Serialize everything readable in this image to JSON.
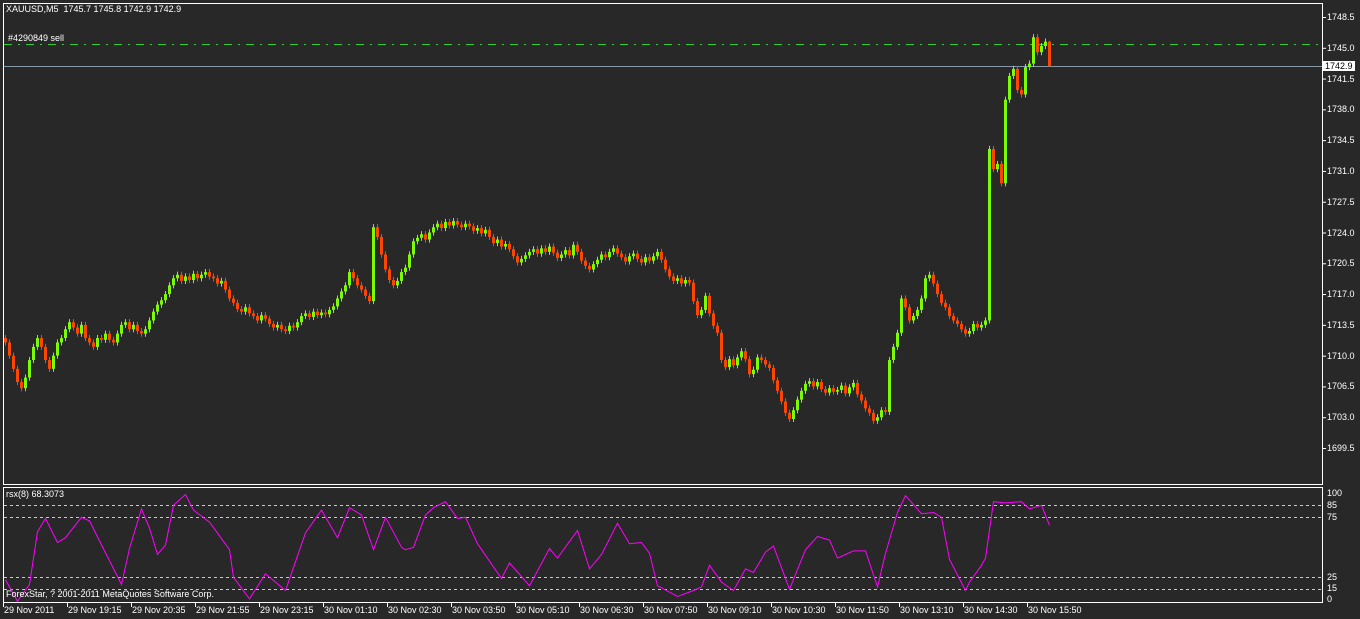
{
  "header": {
    "symbol_label": "XAUUSD,M5",
    "ohlc_label": "1745.7 1745.8 1742.9 1742.9"
  },
  "footer": {
    "copyright": "ForexStar, ? 2001-2011 MetaQuotes Software Corp."
  },
  "colors": {
    "background": "#282828",
    "bull": "#7CFC00",
    "bear": "#FF4500",
    "order_line": "#32CD32",
    "bid_line": "#8899A6",
    "indicator": "#FF00FF",
    "grid_levels": "#C8C8C8",
    "frame": "#FFFFFF"
  },
  "chart_data": {
    "type": "candlestick",
    "symbol": "XAUUSD",
    "timeframe": "M5",
    "last_bar": {
      "open": 1745.7,
      "high": 1745.8,
      "low": 1742.9,
      "close": 1742.9
    },
    "price_axis": {
      "range": [
        1699.5,
        1748.5
      ],
      "ticks": [
        "1748.5",
        "1745.0",
        "1741.5",
        "1738.0",
        "1734.5",
        "1731.0",
        "1727.5",
        "1724.0",
        "1720.5",
        "1717.0",
        "1713.5",
        "1710.0",
        "1706.5",
        "1703.0",
        "1699.5"
      ]
    },
    "current_price": {
      "value": 1742.9,
      "label": "1742.9"
    },
    "order_line": {
      "label": "#4290849 sell",
      "price": 1745.4
    },
    "time_labels": [
      "29 Nov 2011",
      "29 Nov 19:15",
      "29 Nov 20:35",
      "29 Nov 21:55",
      "29 Nov 23:15",
      "30 Nov 01:10",
      "30 Nov 02:30",
      "30 Nov 03:50",
      "30 Nov 05:10",
      "30 Nov 06:30",
      "30 Nov 07:50",
      "30 Nov 09:10",
      "30 Nov 10:30",
      "30 Nov 11:50",
      "30 Nov 13:10",
      "30 Nov 14:30",
      "30 Nov 15:50"
    ],
    "bars_per_time_label": 16,
    "close": [
      1711.5,
      1710,
      1708.5,
      1707,
      1706.3,
      1707.5,
      1709.5,
      1711,
      1712,
      1711,
      1709.5,
      1708.5,
      1710,
      1711.5,
      1712,
      1713,
      1713.8,
      1713.2,
      1712.5,
      1713.5,
      1712,
      1711.5,
      1711,
      1712,
      1711.8,
      1712.5,
      1711.8,
      1711.5,
      1712.5,
      1713.5,
      1713.8,
      1713,
      1713.5,
      1712.8,
      1712.5,
      1713,
      1714,
      1715,
      1715.8,
      1716.3,
      1717,
      1718,
      1718.8,
      1719.2,
      1718.5,
      1719,
      1718.6,
      1719.3,
      1718.8,
      1719.2,
      1719.5,
      1719,
      1718.8,
      1718.2,
      1718.5,
      1717.5,
      1716.5,
      1716,
      1715.3,
      1715,
      1715.5,
      1714.8,
      1714.5,
      1714,
      1714.6,
      1714.2,
      1713.6,
      1713.2,
      1713.5,
      1713,
      1712.8,
      1713.4,
      1713.2,
      1713.8,
      1714.5,
      1714.8,
      1714.4,
      1715,
      1714.6,
      1714.9,
      1714.7,
      1715.2,
      1715.6,
      1716.5,
      1717.3,
      1718,
      1719.5,
      1718.8,
      1718,
      1717.5,
      1716.8,
      1716.2,
      1724.6,
      1723.5,
      1721.5,
      1719.8,
      1718.6,
      1718,
      1718.5,
      1719.5,
      1720,
      1721.5,
      1723,
      1723.4,
      1723.8,
      1723.2,
      1724,
      1724.6,
      1725,
      1724.5,
      1725.2,
      1724.8,
      1725.3,
      1724.9,
      1724.6,
      1725,
      1724.7,
      1724.2,
      1724.5,
      1723.9,
      1724.3,
      1723.5,
      1722.8,
      1723.2,
      1722.4,
      1722.7,
      1722.1,
      1721.3,
      1720.6,
      1721,
      1721.4,
      1721.8,
      1722.1,
      1721.6,
      1722.2,
      1721.8,
      1722.4,
      1721.7,
      1721.1,
      1721.5,
      1722,
      1721.4,
      1722.6,
      1721.8,
      1720.8,
      1720.2,
      1719.8,
      1720.4,
      1720.9,
      1721.5,
      1721.2,
      1721.8,
      1722.2,
      1721.6,
      1721.2,
      1720.7,
      1721.3,
      1721.6,
      1721,
      1720.6,
      1721.2,
      1720.8,
      1721.3,
      1721.8,
      1720.9,
      1719.8,
      1719,
      1718.5,
      1718.8,
      1718.2,
      1718.6,
      1718.3,
      1716.2,
      1714.6,
      1715.2,
      1716.8,
      1714.8,
      1713.4,
      1712.6,
      1709.5,
      1708.7,
      1709.6,
      1708.9,
      1709.8,
      1710.5,
      1709.6,
      1707.9,
      1708.4,
      1709.8,
      1709.5,
      1709,
      1708.6,
      1707.2,
      1706,
      1704.8,
      1703.5,
      1702.8,
      1703.8,
      1705,
      1706,
      1706.8,
      1707.1,
      1706.5,
      1707,
      1706.2,
      1705.8,
      1706.3,
      1705.9,
      1706.1,
      1706.6,
      1705.7,
      1706.4,
      1706.9,
      1705.6,
      1704.9,
      1704,
      1703.5,
      1702.6,
      1703,
      1703.8,
      1703.6,
      1709.5,
      1711,
      1712.6,
      1716.5,
      1715.5,
      1714,
      1714.5,
      1715.2,
      1716.5,
      1718.8,
      1719.2,
      1718.2,
      1717,
      1716,
      1715.5,
      1714.5,
      1714,
      1713.6,
      1713,
      1712.5,
      1712.8,
      1713.6,
      1713.2,
      1713.5,
      1714,
      1733.5,
      1731.2,
      1731.8,
      1729.6,
      1739.1,
      1741.8,
      1742.6,
      1740.2,
      1739.7,
      1742.8,
      1743.2,
      1746.2,
      1744.5,
      1745.2,
      1745.7,
      1742.9
    ],
    "indicator": {
      "label": "rsx(8) 68.3073",
      "name": "rsx(8)",
      "value": 68.3073,
      "range": [
        0,
        100
      ],
      "levels": [
        85,
        75,
        25,
        15
      ],
      "axis_ticks": [
        "100",
        "85",
        "75",
        "25",
        "15",
        "0"
      ],
      "points_bar_value": [
        [
          0,
          23
        ],
        [
          3,
          5
        ],
        [
          6,
          19
        ],
        [
          8,
          63
        ],
        [
          10,
          74
        ],
        [
          13,
          54
        ],
        [
          15,
          58
        ],
        [
          19,
          75
        ],
        [
          21,
          72
        ],
        [
          24,
          52
        ],
        [
          29,
          19
        ],
        [
          31,
          49
        ],
        [
          34,
          82
        ],
        [
          36,
          66
        ],
        [
          38,
          44
        ],
        [
          40,
          52
        ],
        [
          42,
          85
        ],
        [
          45,
          94
        ],
        [
          47,
          81
        ],
        [
          51,
          71
        ],
        [
          56,
          48
        ],
        [
          57,
          25
        ],
        [
          61,
          7
        ],
        [
          65,
          28
        ],
        [
          70,
          14
        ],
        [
          75,
          62
        ],
        [
          79,
          81
        ],
        [
          83,
          58
        ],
        [
          86,
          83
        ],
        [
          89,
          77
        ],
        [
          92,
          48
        ],
        [
          95,
          75
        ],
        [
          99,
          50
        ],
        [
          100,
          48
        ],
        [
          102,
          50
        ],
        [
          105,
          77
        ],
        [
          107,
          83
        ],
        [
          110,
          88
        ],
        [
          113,
          74
        ],
        [
          115,
          75
        ],
        [
          118,
          53
        ],
        [
          124,
          24
        ],
        [
          126,
          37
        ],
        [
          131,
          18
        ],
        [
          136,
          49
        ],
        [
          138,
          41
        ],
        [
          143,
          64
        ],
        [
          146,
          32
        ],
        [
          149,
          44
        ],
        [
          153,
          70
        ],
        [
          156,
          53
        ],
        [
          159,
          54
        ],
        [
          161,
          45
        ],
        [
          163,
          18
        ],
        [
          168,
          9
        ],
        [
          172,
          14
        ],
        [
          174,
          17
        ],
        [
          176,
          35
        ],
        [
          179,
          21
        ],
        [
          182,
          14
        ],
        [
          185,
          32
        ],
        [
          187,
          29
        ],
        [
          190,
          46
        ],
        [
          192,
          51
        ],
        [
          196,
          15
        ],
        [
          200,
          48
        ],
        [
          203,
          59
        ],
        [
          206,
          56
        ],
        [
          208,
          41
        ],
        [
          210,
          44
        ],
        [
          212,
          47
        ],
        [
          215,
          47
        ],
        [
          218,
          17
        ],
        [
          220,
          45
        ],
        [
          223,
          79
        ],
        [
          225,
          93
        ],
        [
          229,
          78
        ],
        [
          232,
          79
        ],
        [
          234,
          75
        ],
        [
          236,
          40
        ],
        [
          240,
          14
        ],
        [
          241,
          21
        ],
        [
          244,
          35
        ],
        [
          245,
          41
        ],
        [
          247,
          88
        ],
        [
          250,
          87
        ],
        [
          254,
          88
        ],
        [
          256,
          82
        ],
        [
          259,
          85
        ],
        [
          261,
          68.3
        ]
      ]
    }
  }
}
